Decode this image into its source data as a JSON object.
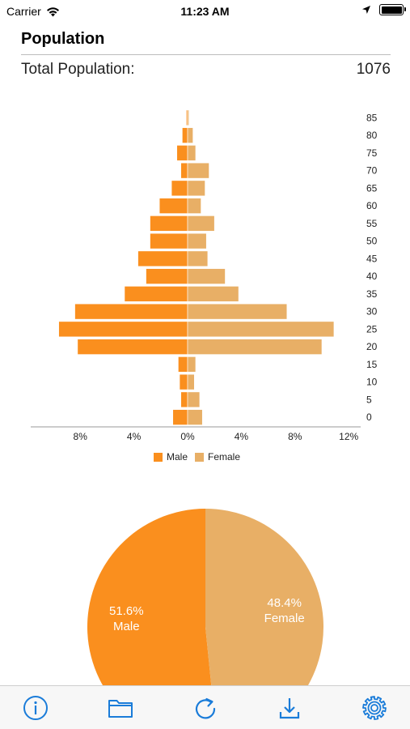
{
  "status_bar": {
    "carrier": "Carrier",
    "time": "11:23 AM"
  },
  "header": {
    "title": "Population",
    "total_label": "Total Population:",
    "total_value": "1076"
  },
  "colors": {
    "male": "#FA8F1E",
    "female": "#E8AF66",
    "accent": "#1A7CD9"
  },
  "chart_data": [
    {
      "type": "bar",
      "orientation": "horizontal",
      "categories": [
        "0",
        "5",
        "10",
        "15",
        "20",
        "25",
        "30",
        "35",
        "40",
        "45",
        "50",
        "55",
        "60",
        "65",
        "70",
        "75",
        "80",
        "85"
      ],
      "series": [
        {
          "name": "Male",
          "values": [
            1.1,
            0.5,
            0.6,
            0.7,
            8.2,
            9.6,
            8.4,
            4.7,
            3.1,
            3.7,
            2.8,
            2.8,
            2.1,
            1.2,
            0.5,
            0.8,
            0.4,
            0.1
          ]
        },
        {
          "name": "Female",
          "values": [
            1.1,
            0.9,
            0.5,
            0.6,
            10.0,
            10.9,
            7.4,
            3.8,
            2.8,
            1.5,
            1.4,
            2.0,
            1.0,
            1.3,
            1.6,
            0.6,
            0.4,
            0.1
          ]
        }
      ],
      "x_tick_labels": [
        "8%",
        "4%",
        "0%",
        "4%",
        "8%",
        "12%"
      ],
      "x_tick_values": [
        -8,
        -4,
        0,
        4,
        8,
        12
      ],
      "xlim": [
        -12,
        12
      ],
      "legend": "bottom"
    },
    {
      "type": "pie",
      "slices": [
        {
          "name": "Male",
          "value": 51.6,
          "label": "51.6%",
          "sublabel": "Male"
        },
        {
          "name": "Female",
          "value": 48.4,
          "label": "48.4%",
          "sublabel": "Female"
        }
      ]
    }
  ],
  "toolbar": {
    "items": [
      "info-icon",
      "folder-icon",
      "refresh-icon",
      "download-icon",
      "gear-icon"
    ]
  }
}
